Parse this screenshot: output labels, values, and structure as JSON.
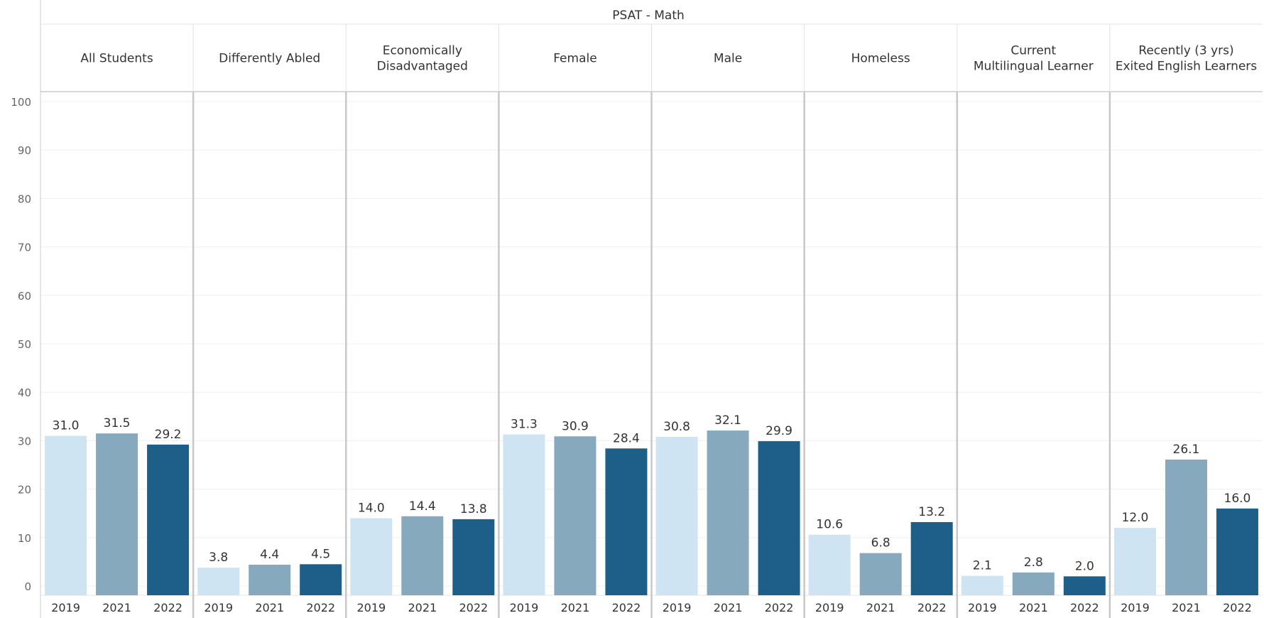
{
  "chart_data": {
    "type": "bar",
    "title": "PSAT - Math",
    "ylim": [
      0,
      100
    ],
    "yticks": [
      0,
      10,
      20,
      30,
      40,
      50,
      60,
      70,
      80,
      90,
      100
    ],
    "grid": true,
    "groups": [
      {
        "label": "All Students",
        "years": [
          "2019",
          "2021",
          "2022"
        ],
        "values": [
          31.0,
          31.5,
          29.2
        ],
        "value_labels": [
          "31.0",
          "31.5",
          "29.2"
        ]
      },
      {
        "label": "Differently Abled",
        "years": [
          "2019",
          "2021",
          "2022"
        ],
        "values": [
          3.8,
          4.4,
          4.5
        ],
        "value_labels": [
          "3.8",
          "4.4",
          "4.5"
        ]
      },
      {
        "label": "Economically Disadvantaged",
        "years": [
          "2019",
          "2021",
          "2022"
        ],
        "values": [
          14.0,
          14.4,
          13.8
        ],
        "value_labels": [
          "14.0",
          "14.4",
          "13.8"
        ]
      },
      {
        "label": "Female",
        "years": [
          "2019",
          "2021",
          "2022"
        ],
        "values": [
          31.3,
          30.9,
          28.4
        ],
        "value_labels": [
          "31.3",
          "30.9",
          "28.4"
        ]
      },
      {
        "label": "Male",
        "years": [
          "2019",
          "2021",
          "2022"
        ],
        "values": [
          30.8,
          32.1,
          29.9
        ],
        "value_labels": [
          "30.8",
          "32.1",
          "29.9"
        ]
      },
      {
        "label": "Homeless",
        "years": [
          "2019",
          "2021",
          "2022"
        ],
        "values": [
          10.6,
          6.8,
          13.2
        ],
        "value_labels": [
          "10.6",
          "6.8",
          "13.2"
        ]
      },
      {
        "label": "Current Multilingual Learner",
        "years": [
          "2019",
          "2021",
          "2022"
        ],
        "values": [
          2.1,
          2.8,
          2.0
        ],
        "value_labels": [
          "2.1",
          "2.8",
          "2.0"
        ]
      },
      {
        "label": "Recently (3 yrs) Exited English Learners",
        "years": [
          "2019",
          "2021",
          "2022"
        ],
        "values": [
          12.0,
          26.1,
          16.0
        ],
        "value_labels": [
          "12.0",
          "26.1",
          "16.0"
        ]
      }
    ],
    "colors": {
      "2019": "#cfe4f2",
      "2021": "#86a9be",
      "2022": "#1d5f88"
    }
  }
}
